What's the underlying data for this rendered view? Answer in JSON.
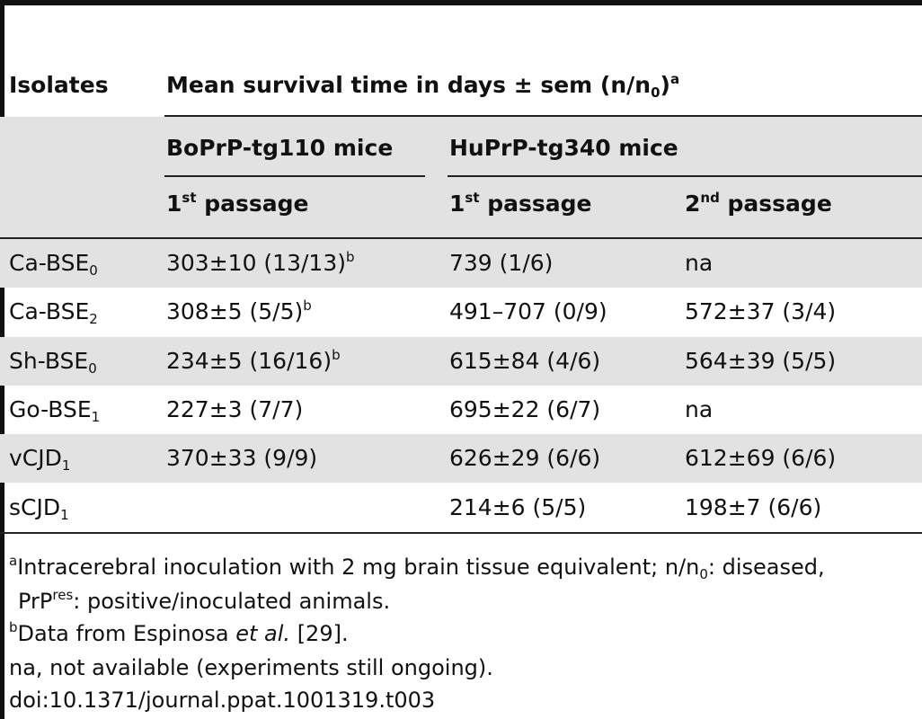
{
  "table": {
    "header": {
      "isolates": "Isolates",
      "mean_survival": "Mean survival time in days ± sem (n/n",
      "mean_survival_sub": "0",
      "mean_survival_close": ")",
      "mean_survival_sup": "a",
      "group_boprp": "BoPrP-tg110 mice",
      "group_huprp": "HuPrP-tg340 mice",
      "passage_1_num": "1",
      "passage_1_sup": "st",
      "passage_1_label": " passage",
      "passage_2_num": "2",
      "passage_2_sup": "nd",
      "passage_2_label": " passage"
    },
    "rows": [
      {
        "isolate": "Ca-BSE",
        "isolate_sub": "0",
        "bo_p1": "303±10 (13/13)",
        "bo_p1_sup": "b",
        "hu_p1": "739 (1/6)",
        "hu_p2": "na"
      },
      {
        "isolate": "Ca-BSE",
        "isolate_sub": "2",
        "bo_p1": "308±5 (5/5)",
        "bo_p1_sup": "b",
        "hu_p1": "491–707 (0/9)",
        "hu_p2": "572±37 (3/4)"
      },
      {
        "isolate": "Sh-BSE",
        "isolate_sub": "0",
        "bo_p1": "234±5 (16/16)",
        "bo_p1_sup": "b",
        "hu_p1": "615±84 (4/6)",
        "hu_p2": "564±39 (5/5)"
      },
      {
        "isolate": "Go-BSE",
        "isolate_sub": "1",
        "bo_p1": "227±3 (7/7)",
        "bo_p1_sup": "",
        "hu_p1": "695±22 (6/7)",
        "hu_p2": "na"
      },
      {
        "isolate": "vCJD",
        "isolate_sub": "1",
        "bo_p1": "370±33 (9/9)",
        "bo_p1_sup": "",
        "hu_p1": "626±29 (6/6)",
        "hu_p2": "612±69 (6/6)"
      },
      {
        "isolate": "sCJD",
        "isolate_sub": "1",
        "bo_p1": "",
        "bo_p1_sup": "",
        "hu_p1": "214±6 (5/5)",
        "hu_p2": "198±7 (6/6)"
      }
    ]
  },
  "footnotes": {
    "a_marker": "a",
    "a_text_1": "Intracerebral inoculation with 2 mg brain tissue equivalent; n/n",
    "a_text_1_sub": "0",
    "a_text_1_end": ": diseased,",
    "a_text_2_prefix": "PrP",
    "a_text_2_sup": "res",
    "a_text_2": ": positive/inoculated animals.",
    "b_marker": "b",
    "b_text_1": "Data from Espinosa ",
    "b_text_italic": "et al.",
    "b_text_2": " [29].",
    "na_text": "na, not available (experiments still ongoing).",
    "doi": "doi:10.1371/journal.ppat.1001319.t003"
  }
}
